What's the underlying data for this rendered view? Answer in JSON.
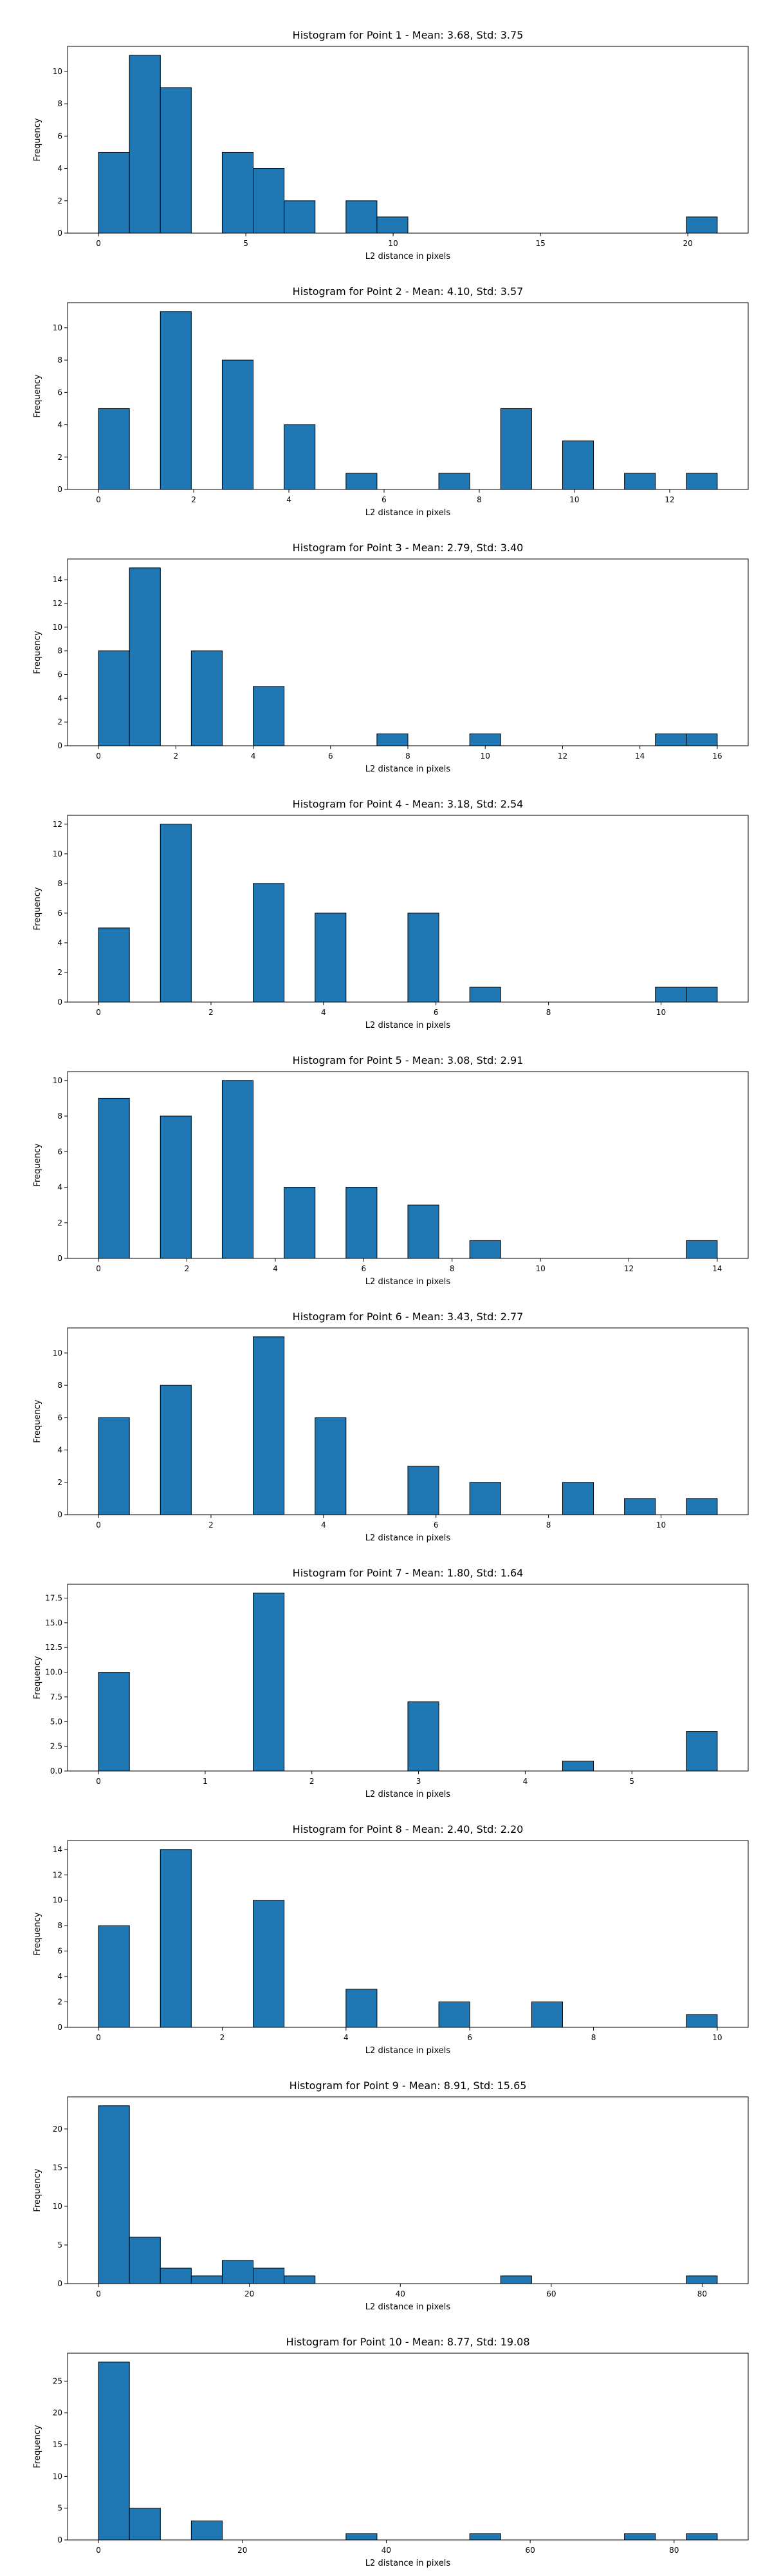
{
  "chart_data": [
    {
      "type": "bar",
      "title": "Histogram for Point 1 - Mean: 3.68, Std: 3.75",
      "xlabel": "L2 distance in pixels",
      "ylabel": "Frequency",
      "xlim": [
        -1.05,
        22.05
      ],
      "ylim": [
        0,
        11.55
      ],
      "xticks": [
        0,
        5,
        10,
        15,
        20
      ],
      "yticks": [
        0,
        2,
        4,
        6,
        8,
        10
      ],
      "bins": [
        {
          "x0": 0.0,
          "x1": 1.05,
          "count": 5
        },
        {
          "x0": 1.05,
          "x1": 2.1,
          "count": 11
        },
        {
          "x0": 2.1,
          "x1": 3.15,
          "count": 9
        },
        {
          "x0": 4.2,
          "x1": 5.25,
          "count": 5
        },
        {
          "x0": 5.25,
          "x1": 6.3,
          "count": 4
        },
        {
          "x0": 6.3,
          "x1": 7.35,
          "count": 2
        },
        {
          "x0": 8.4,
          "x1": 9.45,
          "count": 2
        },
        {
          "x0": 9.45,
          "x1": 10.5,
          "count": 1
        },
        {
          "x0": 19.95,
          "x1": 21.0,
          "count": 1
        }
      ]
    },
    {
      "type": "bar",
      "title": "Histogram for Point 2 - Mean: 4.10, Std: 3.57",
      "xlabel": "L2 distance in pixels",
      "ylabel": "Frequency",
      "xlim": [
        -0.65,
        13.65
      ],
      "ylim": [
        0,
        11.55
      ],
      "xticks": [
        0,
        2,
        4,
        6,
        8,
        10,
        12
      ],
      "yticks": [
        0,
        2,
        4,
        6,
        8,
        10
      ],
      "bins": [
        {
          "x0": 0.0,
          "x1": 0.65,
          "count": 5
        },
        {
          "x0": 1.3,
          "x1": 1.95,
          "count": 11
        },
        {
          "x0": 2.6,
          "x1": 3.25,
          "count": 8
        },
        {
          "x0": 3.9,
          "x1": 4.55,
          "count": 4
        },
        {
          "x0": 5.2,
          "x1": 5.85,
          "count": 1
        },
        {
          "x0": 7.15,
          "x1": 7.8,
          "count": 1
        },
        {
          "x0": 8.45,
          "x1": 9.1,
          "count": 5
        },
        {
          "x0": 9.75,
          "x1": 10.4,
          "count": 3
        },
        {
          "x0": 11.05,
          "x1": 11.7,
          "count": 1
        },
        {
          "x0": 12.35,
          "x1": 13.0,
          "count": 1
        }
      ]
    },
    {
      "type": "bar",
      "title": "Histogram for Point 3 - Mean: 2.79, Std: 3.40",
      "xlabel": "L2 distance in pixels",
      "ylabel": "Frequency",
      "xlim": [
        -0.8,
        16.8
      ],
      "ylim": [
        0,
        15.75
      ],
      "xticks": [
        0,
        2,
        4,
        6,
        8,
        10,
        12,
        14,
        16
      ],
      "yticks": [
        0,
        2,
        4,
        6,
        8,
        10,
        12,
        14
      ],
      "bins": [
        {
          "x0": 0.0,
          "x1": 0.8,
          "count": 8
        },
        {
          "x0": 0.8,
          "x1": 1.6,
          "count": 15
        },
        {
          "x0": 2.4,
          "x1": 3.2,
          "count": 8
        },
        {
          "x0": 4.0,
          "x1": 4.8,
          "count": 5
        },
        {
          "x0": 7.2,
          "x1": 8.0,
          "count": 1
        },
        {
          "x0": 9.6,
          "x1": 10.4,
          "count": 1
        },
        {
          "x0": 14.4,
          "x1": 15.2,
          "count": 1
        },
        {
          "x0": 15.2,
          "x1": 16.0,
          "count": 1
        }
      ]
    },
    {
      "type": "bar",
      "title": "Histogram for Point 4 - Mean: 3.18, Std: 2.54",
      "xlabel": "L2 distance in pixels",
      "ylabel": "Frequency",
      "xlim": [
        -0.55,
        11.55
      ],
      "ylim": [
        0,
        12.6
      ],
      "xticks": [
        0,
        2,
        4,
        6,
        8,
        10
      ],
      "yticks": [
        0,
        2,
        4,
        6,
        8,
        10,
        12
      ],
      "bins": [
        {
          "x0": 0.0,
          "x1": 0.55,
          "count": 5
        },
        {
          "x0": 1.1,
          "x1": 1.65,
          "count": 12
        },
        {
          "x0": 2.75,
          "x1": 3.3,
          "count": 8
        },
        {
          "x0": 3.85,
          "x1": 4.4,
          "count": 6
        },
        {
          "x0": 5.5,
          "x1": 6.05,
          "count": 6
        },
        {
          "x0": 6.6,
          "x1": 7.15,
          "count": 1
        },
        {
          "x0": 9.9,
          "x1": 10.45,
          "count": 1
        },
        {
          "x0": 10.45,
          "x1": 11.0,
          "count": 1
        }
      ]
    },
    {
      "type": "bar",
      "title": "Histogram for Point 5 - Mean: 3.08, Std: 2.91",
      "xlabel": "L2 distance in pixels",
      "ylabel": "Frequency",
      "xlim": [
        -0.7,
        14.7
      ],
      "ylim": [
        0,
        10.5
      ],
      "xticks": [
        0,
        2,
        4,
        6,
        8,
        10,
        12,
        14
      ],
      "yticks": [
        0,
        2,
        4,
        6,
        8,
        10
      ],
      "bins": [
        {
          "x0": 0.0,
          "x1": 0.7,
          "count": 9
        },
        {
          "x0": 1.4,
          "x1": 2.1,
          "count": 8
        },
        {
          "x0": 2.8,
          "x1": 3.5,
          "count": 10
        },
        {
          "x0": 4.2,
          "x1": 4.9,
          "count": 4
        },
        {
          "x0": 5.6,
          "x1": 6.3,
          "count": 4
        },
        {
          "x0": 7.0,
          "x1": 7.7,
          "count": 3
        },
        {
          "x0": 8.4,
          "x1": 9.1,
          "count": 1
        },
        {
          "x0": 13.3,
          "x1": 14.0,
          "count": 1
        }
      ]
    },
    {
      "type": "bar",
      "title": "Histogram for Point 6 - Mean: 3.43, Std: 2.77",
      "xlabel": "L2 distance in pixels",
      "ylabel": "Frequency",
      "xlim": [
        -0.55,
        11.55
      ],
      "ylim": [
        0,
        11.55
      ],
      "xticks": [
        0,
        2,
        4,
        6,
        8,
        10
      ],
      "yticks": [
        0,
        2,
        4,
        6,
        8,
        10
      ],
      "bins": [
        {
          "x0": 0.0,
          "x1": 0.55,
          "count": 6
        },
        {
          "x0": 1.1,
          "x1": 1.65,
          "count": 8
        },
        {
          "x0": 2.75,
          "x1": 3.3,
          "count": 11
        },
        {
          "x0": 3.85,
          "x1": 4.4,
          "count": 6
        },
        {
          "x0": 5.5,
          "x1": 6.05,
          "count": 3
        },
        {
          "x0": 6.6,
          "x1": 7.15,
          "count": 2
        },
        {
          "x0": 8.25,
          "x1": 8.8,
          "count": 2
        },
        {
          "x0": 9.35,
          "x1": 9.9,
          "count": 1
        },
        {
          "x0": 10.45,
          "x1": 11.0,
          "count": 1
        }
      ]
    },
    {
      "type": "bar",
      "title": "Histogram for Point 7 - Mean: 1.80, Std: 1.64",
      "xlabel": "L2 distance in pixels",
      "ylabel": "Frequency",
      "xlim": [
        -0.29,
        6.09
      ],
      "ylim": [
        0,
        18.9
      ],
      "xticks": [
        0,
        1,
        2,
        3,
        4,
        5
      ],
      "yticks": [
        0.0,
        2.5,
        5.0,
        7.5,
        10.0,
        12.5,
        15.0,
        17.5
      ],
      "bins": [
        {
          "x0": 0.0,
          "x1": 0.29,
          "count": 10
        },
        {
          "x0": 1.45,
          "x1": 1.74,
          "count": 18
        },
        {
          "x0": 2.9,
          "x1": 3.19,
          "count": 7
        },
        {
          "x0": 4.35,
          "x1": 4.64,
          "count": 1
        },
        {
          "x0": 5.51,
          "x1": 5.8,
          "count": 4
        }
      ]
    },
    {
      "type": "bar",
      "title": "Histogram for Point 8 - Mean: 2.40, Std: 2.20",
      "xlabel": "L2 distance in pixels",
      "ylabel": "Frequency",
      "xlim": [
        -0.5,
        10.5
      ],
      "ylim": [
        0,
        14.7
      ],
      "xticks": [
        0,
        2,
        4,
        6,
        8,
        10
      ],
      "yticks": [
        0,
        2,
        4,
        6,
        8,
        10,
        12,
        14
      ],
      "bins": [
        {
          "x0": 0.0,
          "x1": 0.5,
          "count": 8
        },
        {
          "x0": 1.0,
          "x1": 1.5,
          "count": 14
        },
        {
          "x0": 2.5,
          "x1": 3.0,
          "count": 10
        },
        {
          "x0": 4.0,
          "x1": 4.5,
          "count": 3
        },
        {
          "x0": 5.5,
          "x1": 6.0,
          "count": 2
        },
        {
          "x0": 7.0,
          "x1": 7.5,
          "count": 2
        },
        {
          "x0": 9.5,
          "x1": 10.0,
          "count": 1
        }
      ]
    },
    {
      "type": "bar",
      "title": "Histogram for Point 9 - Mean: 8.91, Std: 15.65",
      "xlabel": "L2 distance in pixels",
      "ylabel": "Frequency",
      "xlim": [
        -4.1,
        86.1
      ],
      "ylim": [
        0,
        24.15
      ],
      "xticks": [
        0,
        20,
        40,
        60,
        80
      ],
      "yticks": [
        0,
        5,
        10,
        15,
        20
      ],
      "bins": [
        {
          "x0": 0.0,
          "x1": 4.1,
          "count": 23
        },
        {
          "x0": 4.1,
          "x1": 8.2,
          "count": 6
        },
        {
          "x0": 8.2,
          "x1": 12.3,
          "count": 2
        },
        {
          "x0": 12.3,
          "x1": 16.4,
          "count": 1
        },
        {
          "x0": 16.4,
          "x1": 20.5,
          "count": 3
        },
        {
          "x0": 20.5,
          "x1": 24.6,
          "count": 2
        },
        {
          "x0": 24.6,
          "x1": 28.7,
          "count": 1
        },
        {
          "x0": 53.3,
          "x1": 57.4,
          "count": 1
        },
        {
          "x0": 77.9,
          "x1": 82.0,
          "count": 1
        }
      ]
    },
    {
      "type": "bar",
      "title": "Histogram for Point 10 - Mean: 8.77, Std: 19.08",
      "xlabel": "L2 distance in pixels",
      "ylabel": "Frequency",
      "xlim": [
        -4.3,
        90.3
      ],
      "ylim": [
        0,
        29.4
      ],
      "xticks": [
        0,
        20,
        40,
        60,
        80
      ],
      "yticks": [
        0,
        5,
        10,
        15,
        20,
        25
      ],
      "bins": [
        {
          "x0": 0.0,
          "x1": 4.3,
          "count": 28
        },
        {
          "x0": 4.3,
          "x1": 8.6,
          "count": 5
        },
        {
          "x0": 12.9,
          "x1": 17.2,
          "count": 3
        },
        {
          "x0": 34.4,
          "x1": 38.7,
          "count": 1
        },
        {
          "x0": 51.6,
          "x1": 55.9,
          "count": 1
        },
        {
          "x0": 73.1,
          "x1": 77.4,
          "count": 1
        },
        {
          "x0": 81.7,
          "x1": 86.0,
          "count": 1
        }
      ]
    }
  ]
}
